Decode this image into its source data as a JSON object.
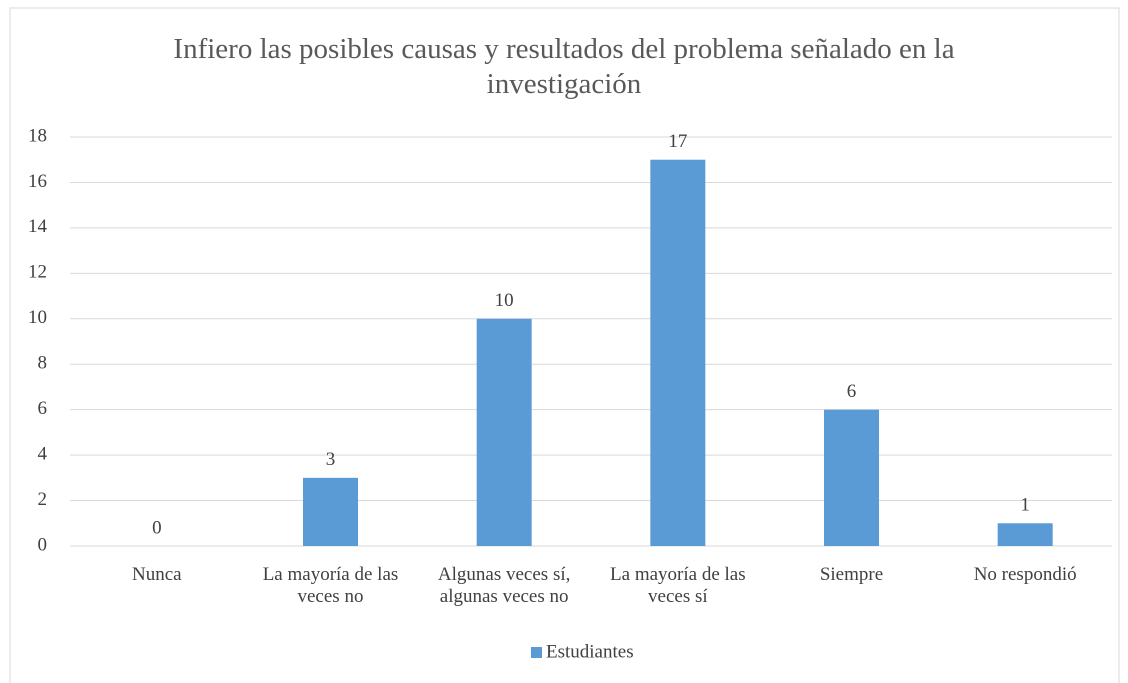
{
  "chart_data": {
    "type": "bar",
    "title": "Infiero las posibles causas y resultados del problema señalado en la investigación",
    "categories": [
      "Nunca",
      "La mayoría de las veces no",
      "Algunas veces sí, algunas veces no",
      "La mayoría de las veces sí",
      "Siempre",
      "No respondió"
    ],
    "series": [
      {
        "name": "Estudiantes",
        "color": "#5b9bd5",
        "values": [
          0,
          3,
          10,
          17,
          6,
          1
        ]
      }
    ],
    "ylim": [
      0,
      18
    ],
    "yticks": [
      0,
      2,
      4,
      6,
      8,
      10,
      12,
      14,
      16,
      18
    ],
    "grid": true,
    "legend": "bottom"
  }
}
